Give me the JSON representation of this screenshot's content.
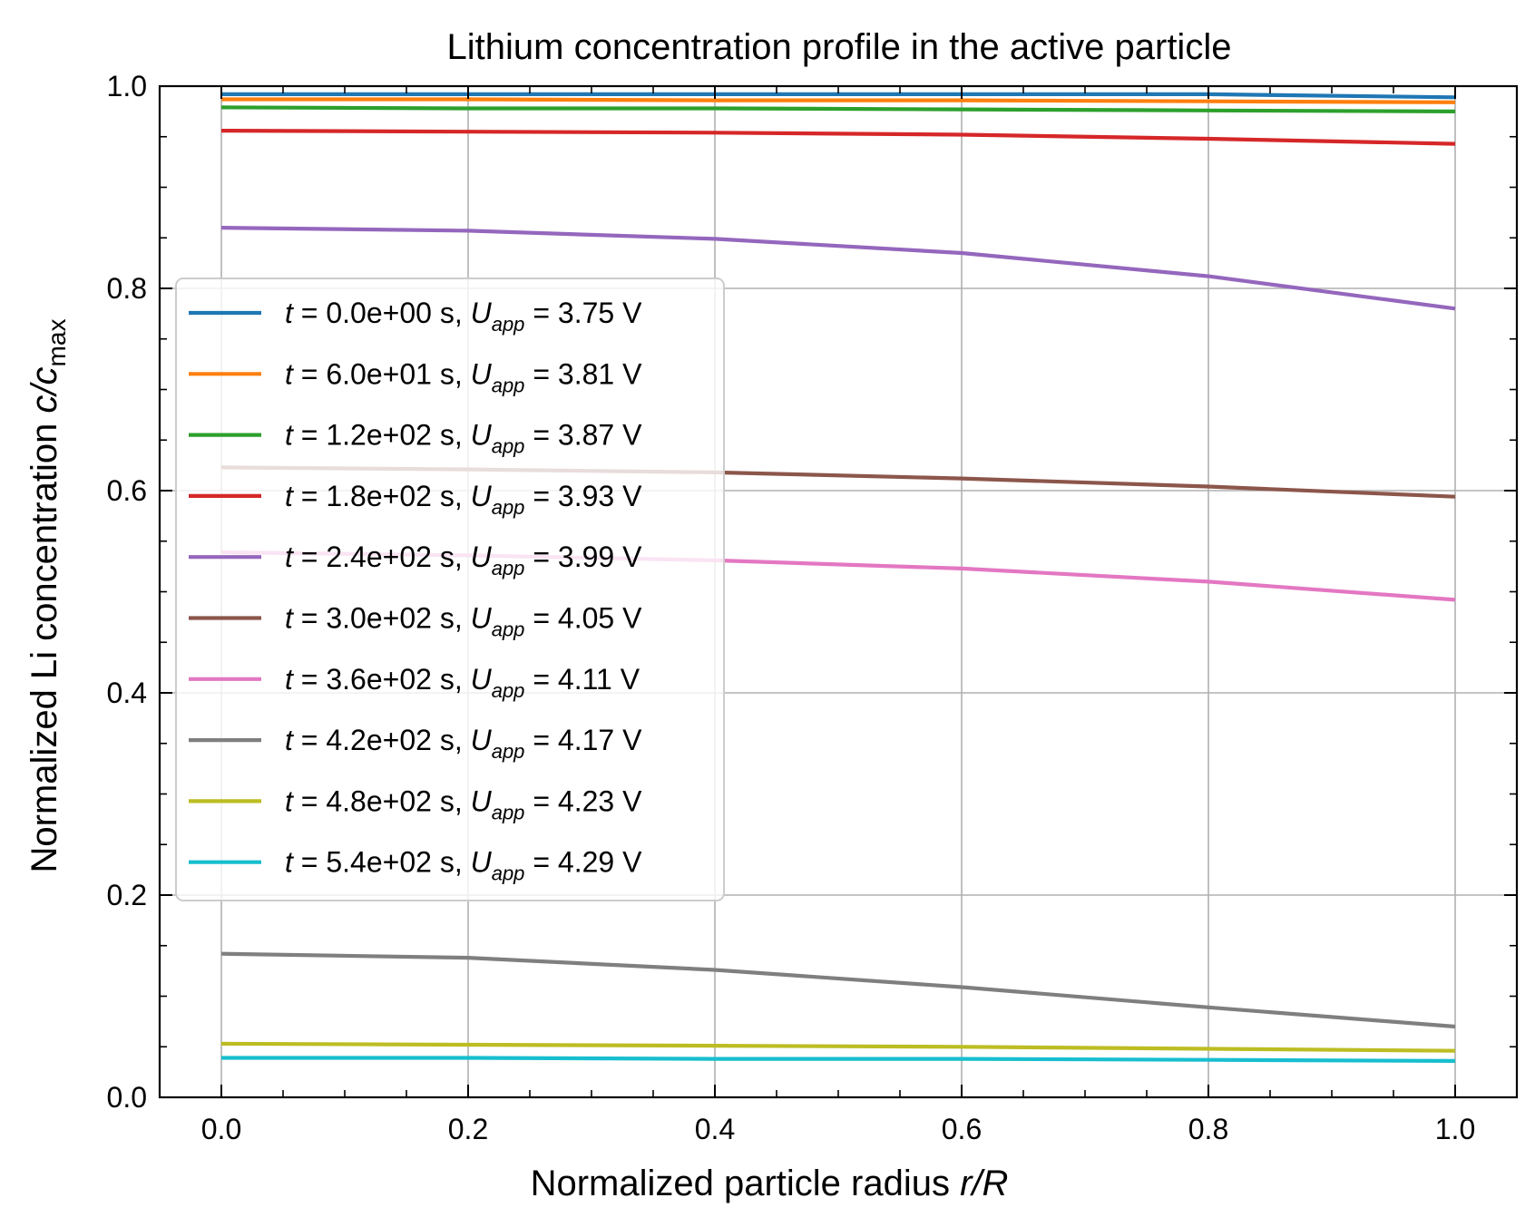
{
  "chart_data": {
    "type": "line",
    "title": "Lithium concentration profile in the active particle",
    "xlabel_text": "Normalized particle radius ",
    "xlabel_var": "r/R",
    "ylabel_text": "Normalized Li concentration ",
    "ylabel_var": "c/c",
    "ylabel_sub": "max",
    "xlim": [
      -0.05,
      1.05
    ],
    "ylim": [
      0.0,
      1.0
    ],
    "x_ticks": [
      "0.0",
      "0.2",
      "0.4",
      "0.6",
      "0.8",
      "1.0"
    ],
    "y_ticks": [
      "0.0",
      "0.2",
      "0.4",
      "0.6",
      "0.8",
      "1.0"
    ],
    "grid": true,
    "legend_position": "center-left",
    "x": [
      0.0,
      0.2,
      0.4,
      0.6,
      0.8,
      1.0
    ],
    "series": [
      {
        "t": "0.0e+00",
        "u": "3.75",
        "color": "#1f77b4",
        "values": [
          0.992,
          0.992,
          0.992,
          0.992,
          0.992,
          0.989
        ]
      },
      {
        "t": "6.0e+01",
        "u": "3.81",
        "color": "#ff7f0e",
        "values": [
          0.987,
          0.987,
          0.986,
          0.986,
          0.985,
          0.984
        ]
      },
      {
        "t": "1.2e+02",
        "u": "3.87",
        "color": "#2ca02c",
        "values": [
          0.979,
          0.978,
          0.978,
          0.977,
          0.976,
          0.975
        ]
      },
      {
        "t": "1.8e+02",
        "u": "3.93",
        "color": "#d62728",
        "values": [
          0.956,
          0.955,
          0.954,
          0.952,
          0.948,
          0.943
        ]
      },
      {
        "t": "2.4e+02",
        "u": "3.99",
        "color": "#9467bd",
        "values": [
          0.86,
          0.857,
          0.849,
          0.835,
          0.812,
          0.78
        ]
      },
      {
        "t": "3.0e+02",
        "u": "4.05",
        "color": "#8c564b",
        "values": [
          0.623,
          0.621,
          0.618,
          0.612,
          0.604,
          0.594
        ]
      },
      {
        "t": "3.6e+02",
        "u": "4.11",
        "color": "#e377c2",
        "values": [
          0.539,
          0.536,
          0.531,
          0.523,
          0.51,
          0.492
        ]
      },
      {
        "t": "4.2e+02",
        "u": "4.17",
        "color": "#7f7f7f",
        "values": [
          0.142,
          0.138,
          0.126,
          0.109,
          0.089,
          0.07
        ]
      },
      {
        "t": "4.8e+02",
        "u": "4.23",
        "color": "#bcbd22",
        "values": [
          0.053,
          0.052,
          0.051,
          0.05,
          0.048,
          0.046
        ]
      },
      {
        "t": "5.4e+02",
        "u": "4.29",
        "color": "#17becf",
        "values": [
          0.039,
          0.039,
          0.038,
          0.038,
          0.037,
          0.036
        ]
      }
    ]
  }
}
